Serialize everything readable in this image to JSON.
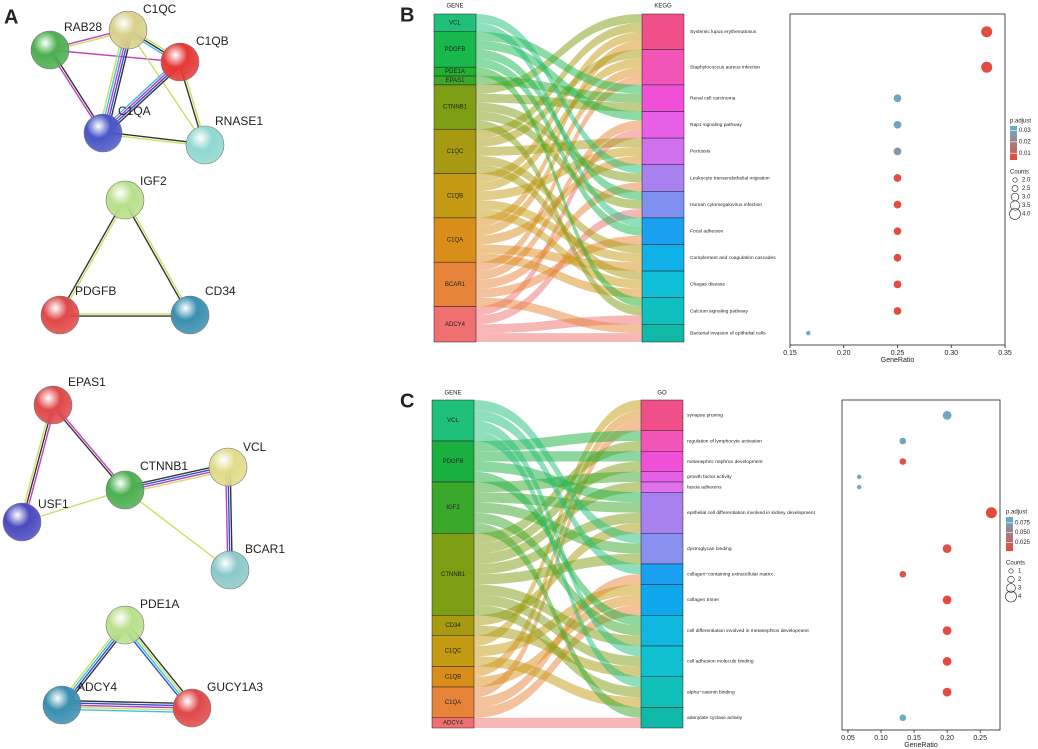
{
  "panels": {
    "a": "A",
    "b": "B",
    "c": "C"
  },
  "network": {
    "nodes": [
      "RAB28",
      "C1QC",
      "C1QB",
      "C1QA",
      "RNASE1",
      "IGF2",
      "PDGFB",
      "CD34",
      "EPAS1",
      "USF1",
      "CTNNB1",
      "VCL",
      "BCAR1",
      "PDE1A",
      "ADCY4",
      "GUCY1A3"
    ],
    "colors": [
      "#4caf50",
      "#d8d08a",
      "#e53935",
      "#4a56c8",
      "#8fd8d0",
      "#b8e08a",
      "#e04848",
      "#3a8fb0",
      "#e04848",
      "#4a4ac0",
      "#4caf50",
      "#e0dc8a",
      "#8cc8c8",
      "#b8e08a",
      "#3a8fb0",
      "#e04848"
    ]
  },
  "sankey": [
    {
      "left_title": "GENE",
      "right_title": "KEGG",
      "genes": [
        "VCL",
        "PDGFB",
        "PDE1A",
        "EPAS1",
        "CTNNB1",
        "C1QC",
        "C1QB",
        "C1QA",
        "BCAR1",
        "ADCY4"
      ],
      "gene_colors": [
        "#1fc07a",
        "#19b84e",
        "#22b030",
        "#3aa82a",
        "#7d9e12",
        "#a89a10",
        "#c49a12",
        "#d98e1a",
        "#e8843a",
        "#f07070"
      ],
      "term_colors": [
        "#f0508a",
        "#f255b8",
        "#f050d8",
        "#e860e8",
        "#d070ec",
        "#a880f0",
        "#8090f0",
        "#1aa0f0",
        "#10b0e8",
        "#10c0d8",
        "#10c0c0",
        "#10b8a8"
      ]
    },
    {
      "left_title": "GENE",
      "right_title": "GO",
      "genes": [
        "VCL",
        "PDGFB",
        "IGF2",
        "CTNNB1",
        "CD34",
        "C1QC",
        "C1QB",
        "C1QA",
        "ADCY4"
      ],
      "gene_colors": [
        "#1fc07a",
        "#1ab040",
        "#3aa82a",
        "#7d9e12",
        "#a89a10",
        "#c49a12",
        "#d98e1a",
        "#e8843a",
        "#f07070"
      ],
      "term_colors": [
        "#f0508a",
        "#f255b8",
        "#f050d8",
        "#e860e8",
        "#e070ec",
        "#a880f0",
        "#8890f0",
        "#1aa0f0",
        "#10a8ec",
        "#10b8e0",
        "#10c0d0",
        "#10c0b8",
        "#10b8a8"
      ]
    }
  ],
  "chart_data": [
    {
      "type": "scatter",
      "xlabel": "GeneRatio",
      "categories": [
        "Systemic lupus erythematosus",
        "Staphylococcus aureus infection",
        "Renal cell carcinoma",
        "Rap1 signaling pathway",
        "Pertussis",
        "Leukocyte transendothelial migration",
        "Human cytomegalovirus infection",
        "Focal adhesion",
        "Complement and coagulation cascades",
        "Chagas disease",
        "Calcium signaling pathway",
        "Bacterial invasion of epithelial cells"
      ],
      "values": [
        0.333,
        0.333,
        0.25,
        0.25,
        0.25,
        0.25,
        0.25,
        0.25,
        0.25,
        0.25,
        0.25,
        0.167
      ],
      "counts": [
        4,
        4,
        3,
        3,
        3,
        3,
        3,
        3,
        3,
        3,
        3,
        2
      ],
      "p_adjust": [
        0.005,
        0.005,
        0.03,
        0.03,
        0.026,
        0.005,
        0.005,
        0.005,
        0.005,
        0.005,
        0.005,
        0.032
      ],
      "xlim": [
        0.15,
        0.35
      ],
      "xticks": [
        0.15,
        {
          "value": 0.2,
          "label": "0.20"
        },
        0.25,
        {
          "value": 0.3,
          "label": "0.30"
        },
        0.35
      ],
      "color_title": "p.adjust",
      "colorlim": [
        0.004,
        0.034
      ],
      "colors": [
        "#e8483a",
        "#5fb3cf"
      ],
      "color_ticks": [
        0.03,
        0.02,
        0.01
      ],
      "size_title": "Counts",
      "sizelim": [
        2,
        4
      ],
      "size_ticks": [
        {
          "value": 2,
          "label": "2.0"
        },
        2.5,
        {
          "value": 3,
          "label": "3.0"
        },
        3.5,
        {
          "value": 4,
          "label": "4.0"
        }
      ]
    },
    {
      "type": "scatter",
      "xlabel": "GeneRatio",
      "categories": [
        "synapse pruning",
        "regulation of lymphocyte activation",
        "metanephric nephron development",
        "growth factor activity",
        "fascia adherens",
        "epithelial cell differentiation involved in kidney development",
        "dystroglycan binding",
        "collagen−containing extracellular matrix",
        "collagen trimer",
        "cell differentiation involved in metanephros development",
        "cell adhesion molecule binding",
        "alpha−catenin binding",
        "adenylate cyclase activity"
      ],
      "values": [
        0.2,
        0.133,
        0.133,
        0.067,
        0.067,
        0.267,
        0.2,
        0.133,
        0.2,
        0.2,
        0.2,
        0.2,
        0.133
      ],
      "counts": [
        3,
        2,
        2,
        1,
        1,
        4,
        3,
        2,
        3,
        3,
        3,
        3,
        2
      ],
      "p_adjust": [
        0.08,
        0.08,
        0.01,
        0.085,
        0.085,
        0.005,
        0.01,
        0.01,
        0.005,
        0.005,
        0.005,
        0.005,
        0.085
      ],
      "xlim": [
        0.041,
        0.28
      ],
      "xticks": [
        0.05,
        {
          "value": 0.1,
          "label": "0.10"
        },
        0.15,
        {
          "value": 0.2,
          "label": "0.20"
        },
        0.25
      ],
      "color_title": "p.adjust",
      "colorlim": [
        0.003,
        0.09
      ],
      "colors": [
        "#e8483a",
        "#5fb3cf"
      ],
      "color_ticks": [
        0.075,
        {
          "value": 0.05,
          "label": "0.050"
        },
        0.025
      ],
      "size_title": "Counts",
      "sizelim": [
        1,
        4
      ],
      "size_ticks": [
        1,
        2,
        3,
        4
      ]
    }
  ]
}
